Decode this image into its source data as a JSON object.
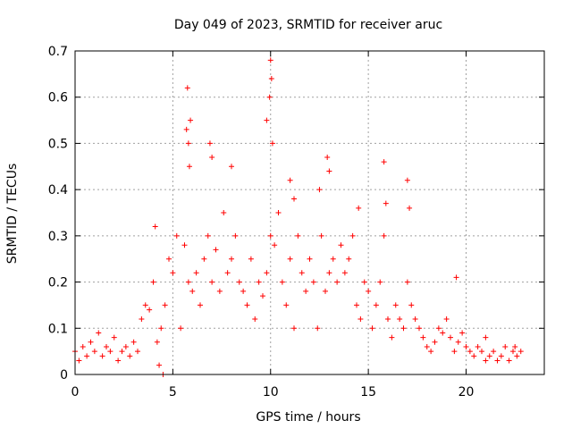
{
  "chart_data": {
    "type": "scatter",
    "title": "Day 049 of 2023, SRMTID for receiver aruc",
    "xlabel": "GPS time / hours",
    "ylabel": "SRMTID / TECUs",
    "xlim": [
      0,
      24
    ],
    "ylim": [
      0,
      0.7
    ],
    "xticks": [
      0,
      5,
      10,
      15,
      20
    ],
    "yticks": [
      0,
      0.1,
      0.2,
      0.3,
      0.4,
      0.5,
      0.6,
      0.7
    ],
    "xtick_labels": [
      "0",
      "5",
      "10",
      "15",
      "20"
    ],
    "ytick_labels": [
      "0",
      "0.1",
      "0.2",
      "0.3",
      "0.4",
      "0.5",
      "0.6",
      "0.7"
    ],
    "grid": true,
    "marker": "+",
    "series": [
      {
        "name": "SRMTID",
        "color": "#ff0000",
        "x": [
          0.0,
          0.2,
          0.4,
          0.6,
          0.8,
          1.0,
          1.2,
          1.4,
          1.6,
          1.8,
          2.0,
          2.2,
          2.4,
          2.6,
          2.8,
          3.0,
          3.2,
          3.4,
          3.6,
          3.8,
          4.0,
          4.2,
          4.4,
          4.6,
          4.8,
          5.0,
          5.2,
          5.4,
          5.6,
          5.8,
          6.0,
          6.2,
          6.4,
          6.6,
          6.8,
          7.0,
          7.2,
          7.4,
          7.6,
          7.8,
          8.0,
          8.2,
          8.4,
          8.6,
          8.8,
          9.0,
          9.2,
          9.4,
          9.6,
          9.8,
          10.0,
          10.2,
          10.4,
          10.6,
          10.8,
          11.0,
          11.2,
          11.4,
          11.6,
          11.8,
          12.0,
          12.2,
          12.4,
          12.6,
          12.8,
          13.0,
          13.2,
          13.4,
          13.6,
          13.8,
          14.0,
          14.2,
          14.4,
          14.6,
          14.8,
          15.0,
          15.2,
          15.4,
          15.6,
          15.8,
          16.0,
          16.2,
          16.4,
          16.6,
          16.8,
          17.0,
          17.2,
          17.4,
          17.6,
          17.8,
          18.0,
          18.2,
          18.4,
          18.6,
          18.8,
          19.0,
          19.2,
          19.4,
          19.6,
          19.8,
          20.0,
          20.2,
          20.4,
          20.6,
          20.8,
          21.0,
          21.2,
          21.4,
          21.6,
          21.8,
          22.0,
          22.2,
          22.4,
          22.6,
          22.8,
          5.7,
          5.75,
          5.8,
          5.85,
          5.9,
          9.95,
          10.0,
          10.05,
          10.1,
          9.8,
          6.9,
          7.0,
          12.9,
          13.0,
          15.8,
          15.9,
          17.0,
          17.1,
          8.0,
          11.0,
          11.2,
          12.5,
          14.5,
          4.1,
          4.3,
          4.5,
          19.5,
          21.0,
          22.5
        ],
        "y": [
          0.05,
          0.03,
          0.06,
          0.04,
          0.07,
          0.05,
          0.09,
          0.04,
          0.06,
          0.05,
          0.08,
          0.03,
          0.05,
          0.06,
          0.04,
          0.07,
          0.05,
          0.12,
          0.15,
          0.14,
          0.2,
          0.07,
          0.1,
          0.15,
          0.25,
          0.22,
          0.3,
          0.1,
          0.28,
          0.2,
          0.18,
          0.22,
          0.15,
          0.25,
          0.3,
          0.2,
          0.27,
          0.18,
          0.35,
          0.22,
          0.25,
          0.3,
          0.2,
          0.18,
          0.15,
          0.25,
          0.12,
          0.2,
          0.17,
          0.22,
          0.3,
          0.28,
          0.35,
          0.2,
          0.15,
          0.25,
          0.1,
          0.3,
          0.22,
          0.18,
          0.25,
          0.2,
          0.1,
          0.3,
          0.18,
          0.22,
          0.25,
          0.2,
          0.28,
          0.22,
          0.25,
          0.3,
          0.15,
          0.12,
          0.2,
          0.18,
          0.1,
          0.15,
          0.2,
          0.3,
          0.12,
          0.08,
          0.15,
          0.12,
          0.1,
          0.2,
          0.15,
          0.12,
          0.1,
          0.08,
          0.06,
          0.05,
          0.07,
          0.1,
          0.09,
          0.12,
          0.08,
          0.05,
          0.07,
          0.09,
          0.06,
          0.05,
          0.04,
          0.06,
          0.05,
          0.03,
          0.04,
          0.05,
          0.03,
          0.04,
          0.06,
          0.03,
          0.05,
          0.04,
          0.05,
          0.53,
          0.62,
          0.5,
          0.45,
          0.55,
          0.6,
          0.68,
          0.64,
          0.5,
          0.55,
          0.5,
          0.47,
          0.47,
          0.44,
          0.46,
          0.37,
          0.42,
          0.36,
          0.45,
          0.42,
          0.38,
          0.4,
          0.36,
          0.32,
          0.02,
          0.0,
          0.21,
          0.08,
          0.06
        ]
      }
    ]
  }
}
